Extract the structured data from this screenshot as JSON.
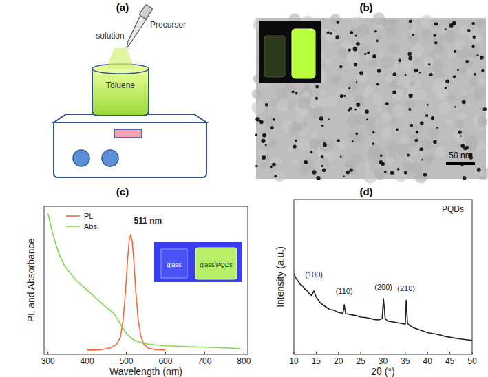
{
  "figure": {
    "panel_labels": [
      "(a)",
      "(b)",
      "(c)",
      "(d)"
    ],
    "schematic": {
      "pipette_label": "Precursor solution",
      "beaker_label": "Toluene"
    },
    "tem": {
      "scale_bar": "50 nm"
    },
    "photo_inset": {
      "labels": [
        "glass",
        "glass/PQDs"
      ]
    }
  },
  "chart_data": [
    {
      "type": "line",
      "x_label": "Wavelength (nm)",
      "y_label": "PL and Absorbance",
      "xlim": [
        290,
        810
      ],
      "xticks": [
        300,
        400,
        500,
        600,
        700,
        800
      ],
      "ylim": [
        0,
        1.05
      ],
      "tick_labels": "x",
      "grid": false,
      "legend": "upper left",
      "annotations": [
        {
          "text": "511 nm",
          "x": 555,
          "y": 0.93
        }
      ],
      "series": [
        {
          "name": "PL",
          "color": "#f26b38",
          "line_style": "solid",
          "x": [
            400,
            420,
            440,
            460,
            475,
            485,
            492,
            498,
            503,
            507,
            511,
            515,
            519,
            524,
            530,
            537,
            545,
            555,
            570,
            600
          ],
          "values": [
            0.03,
            0.03,
            0.035,
            0.045,
            0.07,
            0.12,
            0.25,
            0.45,
            0.66,
            0.8,
            0.85,
            0.8,
            0.67,
            0.45,
            0.25,
            0.13,
            0.07,
            0.045,
            0.035,
            0.03
          ]
        },
        {
          "name": "Abs.",
          "color": "#7fd84a",
          "line_style": "solid",
          "x": [
            300,
            305,
            310,
            320,
            330,
            340,
            350,
            370,
            390,
            410,
            430,
            450,
            460,
            465,
            470,
            480,
            490,
            500,
            510,
            520,
            540,
            560,
            600,
            650,
            700,
            750,
            790
          ],
          "values": [
            1.0,
            0.94,
            0.88,
            0.78,
            0.7,
            0.64,
            0.6,
            0.53,
            0.48,
            0.43,
            0.38,
            0.33,
            0.31,
            0.3,
            0.28,
            0.24,
            0.19,
            0.15,
            0.12,
            0.1,
            0.08,
            0.07,
            0.06,
            0.055,
            0.05,
            0.045,
            0.04
          ]
        }
      ]
    },
    {
      "type": "line",
      "x_label": "2θ (°)",
      "y_label": "Intensity (a.u.)",
      "xlim": [
        10,
        50
      ],
      "xticks": [
        10,
        15,
        20,
        25,
        30,
        35,
        40,
        45,
        50
      ],
      "ylim": [
        0,
        1
      ],
      "tick_labels": "x",
      "grid": false,
      "legend": "upper right",
      "annotations": [
        {
          "text": "(100)",
          "x": 14.5,
          "y": 0.5
        },
        {
          "text": "(110)",
          "x": 21.3,
          "y": 0.39
        },
        {
          "text": "(200)",
          "x": 30.1,
          "y": 0.42
        },
        {
          "text": "(210)",
          "x": 35.2,
          "y": 0.41
        }
      ],
      "series": [
        {
          "name": "PQDs",
          "color": "#222222",
          "line_style": "solid",
          "x": [
            10,
            10.5,
            11,
            11.5,
            12,
            12.5,
            13,
            13.5,
            14,
            14.5,
            15,
            15.5,
            16,
            17,
            18,
            19,
            20,
            21,
            21.3,
            21.6,
            22,
            23,
            24,
            25,
            26,
            27,
            28,
            29,
            29.8,
            30.1,
            30.5,
            31,
            32,
            33,
            34,
            35,
            35.2,
            35.5,
            36,
            37,
            38,
            39,
            40,
            42,
            44,
            46,
            48,
            50
          ],
          "values": [
            0.52,
            0.49,
            0.47,
            0.45,
            0.44,
            0.42,
            0.41,
            0.39,
            0.38,
            0.41,
            0.37,
            0.35,
            0.33,
            0.31,
            0.29,
            0.285,
            0.27,
            0.265,
            0.32,
            0.262,
            0.26,
            0.255,
            0.25,
            0.24,
            0.238,
            0.232,
            0.225,
            0.222,
            0.23,
            0.36,
            0.23,
            0.215,
            0.21,
            0.205,
            0.2,
            0.195,
            0.35,
            0.2,
            0.185,
            0.17,
            0.16,
            0.15,
            0.14,
            0.13,
            0.115,
            0.105,
            0.097,
            0.09
          ]
        }
      ]
    }
  ]
}
